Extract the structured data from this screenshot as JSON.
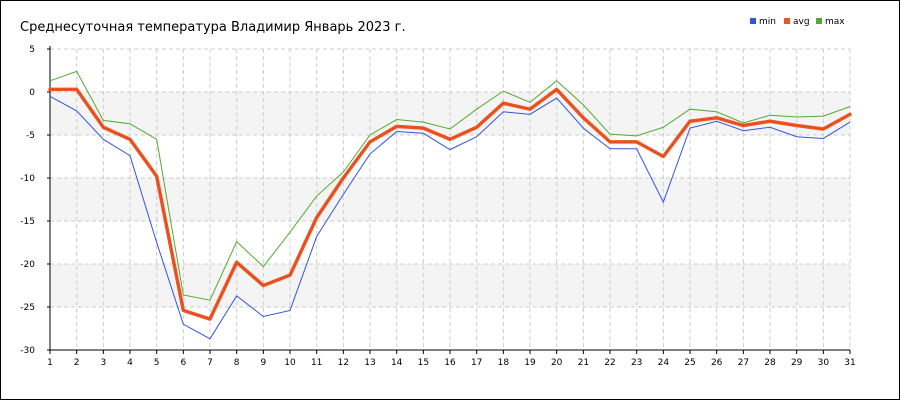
{
  "chart_data": {
    "type": "line",
    "title": "Среднесуточная температура Владимир  Январь 2023 г.",
    "xlabel": "",
    "ylabel": "",
    "x": [
      1,
      2,
      3,
      4,
      5,
      6,
      7,
      8,
      9,
      10,
      11,
      12,
      13,
      14,
      15,
      16,
      17,
      18,
      19,
      20,
      21,
      22,
      23,
      24,
      25,
      26,
      27,
      28,
      29,
      30,
      31
    ],
    "xlim": [
      1,
      31
    ],
    "ylim": [
      -30,
      5
    ],
    "yticks": [
      5,
      0,
      -5,
      -10,
      -15,
      -20,
      -25,
      -30
    ],
    "grid": true,
    "legend_position": "top-right",
    "series": [
      {
        "name": "min",
        "color": "#3355dd",
        "values": [
          -0.5,
          -2.2,
          -5.5,
          -7.4,
          -17.5,
          -27.0,
          -28.7,
          -23.7,
          -26.1,
          -25.4,
          -16.8,
          -11.9,
          -7.2,
          -4.6,
          -4.8,
          -6.7,
          -5.2,
          -2.3,
          -2.6,
          -0.7,
          -4.2,
          -6.6,
          -6.6,
          -12.8,
          -4.2,
          -3.4,
          -4.5,
          -4.1,
          -5.2,
          -5.4,
          -3.5
        ]
      },
      {
        "name": "avg",
        "color": "#ee5522",
        "values": [
          0.3,
          0.3,
          -4.1,
          -5.5,
          -9.8,
          -25.4,
          -26.4,
          -19.8,
          -22.5,
          -21.3,
          -14.6,
          -10.0,
          -5.8,
          -4.0,
          -4.2,
          -5.5,
          -4.1,
          -1.3,
          -2.0,
          0.3,
          -3.0,
          -5.8,
          -5.8,
          -7.5,
          -3.4,
          -3.0,
          -3.9,
          -3.4,
          -3.9,
          -4.3,
          -2.6
        ]
      },
      {
        "name": "max",
        "color": "#55aa33",
        "values": [
          1.3,
          2.4,
          -3.3,
          -3.7,
          -5.5,
          -23.6,
          -24.2,
          -17.4,
          -20.3,
          -16.3,
          -12.1,
          -9.3,
          -5.0,
          -3.2,
          -3.5,
          -4.3,
          -2.0,
          0.1,
          -1.2,
          1.3,
          -1.5,
          -4.9,
          -5.1,
          -4.1,
          -2.0,
          -2.3,
          -3.6,
          -2.7,
          -2.9,
          -2.8,
          -1.7
        ]
      }
    ]
  }
}
